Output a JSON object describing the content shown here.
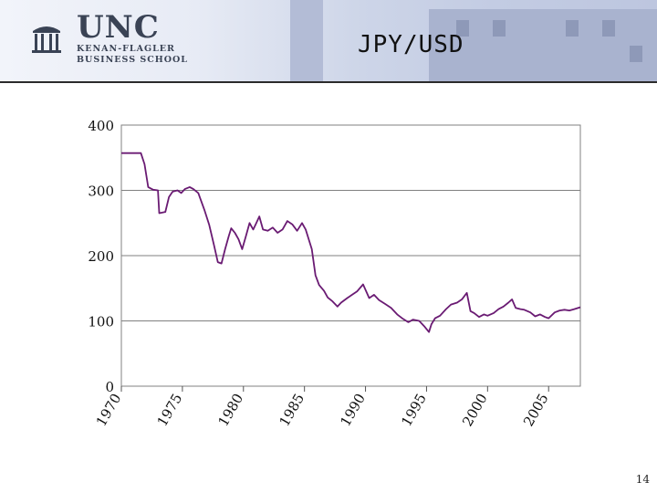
{
  "slide": {
    "title": "JPY/USD",
    "page_number": "14"
  },
  "logo": {
    "name": "UNC",
    "line1": "KENAN-FLAGLER",
    "line2": "BUSINESS SCHOOL",
    "icon": "old-well-icon"
  },
  "colors": {
    "series": "#6a1b73",
    "grid": "#808080",
    "plot_border": "#808080",
    "header_bg": "#c8d0e6"
  },
  "chart_data": {
    "type": "line",
    "title": "",
    "xlabel": "",
    "ylabel": "",
    "xlim": [
      1970,
      2007.6
    ],
    "ylim": [
      0,
      400
    ],
    "yticks": [
      0,
      100,
      200,
      300,
      400
    ],
    "xticks": [
      1970,
      1975,
      1980,
      1985,
      1990,
      1995,
      2000,
      2005
    ],
    "grid": "horizontal",
    "legend": "none",
    "series": [
      {
        "x": [
          1970.0,
          1971.6,
          1971.9,
          1972.2,
          1972.6,
          1973.0,
          1973.1,
          1973.6,
          1973.9,
          1974.2,
          1974.6,
          1974.9,
          1975.2,
          1975.6,
          1975.9,
          1976.3,
          1976.8,
          1977.2,
          1977.6,
          1977.9,
          1978.2,
          1978.5,
          1978.8,
          1979.0,
          1979.3,
          1979.6,
          1979.9,
          1980.2,
          1980.5,
          1980.8,
          1981.0,
          1981.3,
          1981.6,
          1982.0,
          1982.4,
          1982.8,
          1983.2,
          1983.6,
          1984.0,
          1984.4,
          1984.8,
          1985.1,
          1985.6,
          1985.9,
          1986.2,
          1986.6,
          1986.9,
          1987.3,
          1987.7,
          1988.0,
          1988.5,
          1988.9,
          1989.3,
          1989.8,
          1990.3,
          1990.7,
          1991.1,
          1991.6,
          1992.1,
          1992.6,
          1993.0,
          1993.5,
          1993.9,
          1994.4,
          1994.8,
          1995.2,
          1995.4,
          1995.7,
          1996.1,
          1996.6,
          1997.0,
          1997.5,
          1997.9,
          1998.3,
          1998.6,
          1998.9,
          1999.3,
          1999.7,
          2000.0,
          2000.5,
          2000.9,
          2001.3,
          2001.7,
          2002.0,
          2002.3,
          2002.7,
          2003.0,
          2003.5,
          2003.9,
          2004.3,
          2004.7,
          2005.0,
          2005.5,
          2005.9,
          2006.3,
          2006.7,
          2007.1,
          2007.6
        ],
        "values": [
          357,
          357,
          340,
          305,
          301,
          300,
          265,
          267,
          290,
          298,
          300,
          296,
          302,
          305,
          302,
          296,
          270,
          247,
          215,
          190,
          188,
          210,
          230,
          242,
          235,
          225,
          210,
          230,
          250,
          240,
          248,
          260,
          240,
          238,
          243,
          235,
          240,
          253,
          248,
          238,
          250,
          240,
          210,
          170,
          155,
          146,
          136,
          130,
          122,
          128,
          135,
          140,
          145,
          156,
          135,
          140,
          132,
          126,
          120,
          110,
          104,
          98,
          102,
          100,
          92,
          83,
          95,
          104,
          108,
          118,
          125,
          128,
          133,
          143,
          115,
          112,
          106,
          110,
          108,
          112,
          118,
          122,
          128,
          133,
          120,
          118,
          117,
          113,
          107,
          110,
          106,
          104,
          113,
          116,
          117,
          116,
          118,
          121
        ]
      }
    ]
  }
}
